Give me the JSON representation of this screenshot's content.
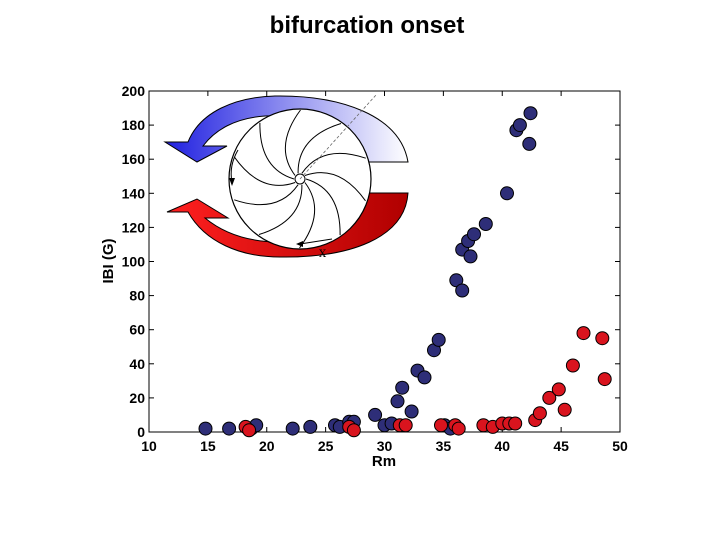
{
  "chart_data": {
    "type": "scatter",
    "title": "bifurcation onset",
    "xlabel": "Rm",
    "ylabel": "IBI (G)",
    "xlim": [
      10,
      50
    ],
    "ylim": [
      0,
      200
    ],
    "xticks": [
      10,
      15,
      20,
      25,
      30,
      35,
      40,
      45,
      50
    ],
    "yticks": [
      0,
      20,
      40,
      60,
      80,
      100,
      120,
      140,
      160,
      180,
      200
    ],
    "grid": false,
    "legend": null,
    "inset_annotation": "X",
    "series": [
      {
        "name": "blue",
        "color": "#2e2e78",
        "points": [
          [
            14.8,
            2
          ],
          [
            16.8,
            2
          ],
          [
            18.7,
            2
          ],
          [
            19.1,
            4
          ],
          [
            22.2,
            2
          ],
          [
            23.7,
            3
          ],
          [
            25.8,
            4
          ],
          [
            26.2,
            3
          ],
          [
            27.0,
            6
          ],
          [
            27.4,
            6
          ],
          [
            29.2,
            10
          ],
          [
            30.0,
            4
          ],
          [
            30.6,
            5
          ],
          [
            31.1,
            18
          ],
          [
            31.5,
            26
          ],
          [
            32.3,
            12
          ],
          [
            32.8,
            36
          ],
          [
            33.4,
            32
          ],
          [
            34.2,
            48
          ],
          [
            34.6,
            54
          ],
          [
            35.1,
            4
          ],
          [
            35.6,
            2
          ],
          [
            36.1,
            89
          ],
          [
            36.6,
            83
          ],
          [
            36.6,
            107
          ],
          [
            37.1,
            112
          ],
          [
            37.3,
            103
          ],
          [
            37.6,
            116
          ],
          [
            38.6,
            122
          ],
          [
            40.4,
            140
          ],
          [
            41.2,
            177
          ],
          [
            41.5,
            180
          ],
          [
            42.3,
            169
          ],
          [
            42.4,
            187
          ]
        ]
      },
      {
        "name": "red",
        "color": "#d9141e",
        "points": [
          [
            18.2,
            3
          ],
          [
            18.5,
            1
          ],
          [
            27.0,
            3
          ],
          [
            27.4,
            1
          ],
          [
            31.3,
            4
          ],
          [
            31.8,
            4
          ],
          [
            34.8,
            4
          ],
          [
            36.0,
            4
          ],
          [
            36.3,
            2
          ],
          [
            38.4,
            4
          ],
          [
            39.2,
            3
          ],
          [
            40.0,
            5
          ],
          [
            40.6,
            5
          ],
          [
            41.1,
            5
          ],
          [
            42.8,
            7
          ],
          [
            43.2,
            11
          ],
          [
            44.0,
            20
          ],
          [
            44.8,
            25
          ],
          [
            45.3,
            13
          ],
          [
            46.0,
            39
          ],
          [
            46.9,
            58
          ],
          [
            48.5,
            55
          ],
          [
            48.7,
            31
          ]
        ]
      }
    ]
  },
  "inset_colors": {
    "blue": "#2222dd",
    "red": "#dd1111"
  }
}
